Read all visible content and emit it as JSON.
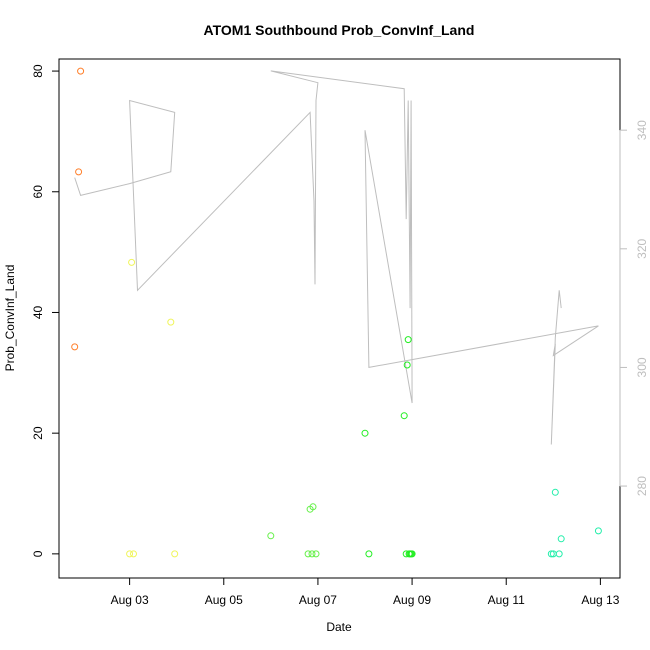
{
  "chart_data": {
    "type": "scatter",
    "title": "ATOM1 Southbound Prob_ConvInf_Land",
    "xlabel": "Date",
    "ylabel": "Prob_ConvInf_Land",
    "x_axis": {
      "type": "date",
      "range": [
        "2015-08-01T12:00",
        "2015-08-13T10:00"
      ],
      "ticks": [
        {
          "value": "2015-08-03",
          "label": "Aug 03"
        },
        {
          "value": "2015-08-05",
          "label": "Aug 05"
        },
        {
          "value": "2015-08-07",
          "label": "Aug 07"
        },
        {
          "value": "2015-08-09",
          "label": "Aug 09"
        },
        {
          "value": "2015-08-11",
          "label": "Aug 11"
        },
        {
          "value": "2015-08-13",
          "label": "Aug 13"
        }
      ]
    },
    "y_axis_left": {
      "range": [
        -4,
        82
      ],
      "ticks": [
        0,
        20,
        40,
        60,
        80
      ]
    },
    "y_axis_right": {
      "range": [
        264.5,
        352
      ],
      "ticks": [
        280,
        300,
        320,
        340
      ],
      "color": "#bebebe"
    },
    "series": [
      {
        "type": "scatter",
        "axis": "left",
        "points": [
          {
            "x": "2015-08-01T20:00",
            "y": 34.3,
            "color": "#ff7f2a"
          },
          {
            "x": "2015-08-01T22:00",
            "y": 63.3,
            "color": "#ff7f2a"
          },
          {
            "x": "2015-08-01T23:00",
            "y": 80.0,
            "color": "#ff7f2a"
          },
          {
            "x": "2015-08-03T00:00",
            "y": 0.0,
            "color": "#f0f55a"
          },
          {
            "x": "2015-08-03T01:00",
            "y": 48.3,
            "color": "#f0f55a"
          },
          {
            "x": "2015-08-03T02:00",
            "y": 0.0,
            "color": "#f0f55a"
          },
          {
            "x": "2015-08-03T21:00",
            "y": 38.4,
            "color": "#f0f55a"
          },
          {
            "x": "2015-08-03T23:00",
            "y": 0.0,
            "color": "#f0f55a"
          },
          {
            "x": "2015-08-06T00:00",
            "y": 3.0,
            "color": "#66f04a"
          },
          {
            "x": "2015-08-06T19:00",
            "y": 0.0,
            "color": "#66f04a"
          },
          {
            "x": "2015-08-06T20:00",
            "y": 7.4,
            "color": "#66f04a"
          },
          {
            "x": "2015-08-06T21:00",
            "y": 0.0,
            "color": "#66f04a"
          },
          {
            "x": "2015-08-06T21:30",
            "y": 7.8,
            "color": "#66f04a"
          },
          {
            "x": "2015-08-06T23:00",
            "y": 0.0,
            "color": "#66f04a"
          },
          {
            "x": "2015-08-08T00:00",
            "y": 20.0,
            "color": "#22ee22"
          },
          {
            "x": "2015-08-08T02:00",
            "y": 0.0,
            "color": "#22ee22"
          },
          {
            "x": "2015-08-08T20:00",
            "y": 22.9,
            "color": "#22ee22"
          },
          {
            "x": "2015-08-08T21:00",
            "y": 0.0,
            "color": "#22ee22"
          },
          {
            "x": "2015-08-08T21:30",
            "y": 31.3,
            "color": "#22ee22"
          },
          {
            "x": "2015-08-08T22:00",
            "y": 35.5,
            "color": "#22ee22"
          },
          {
            "x": "2015-08-08T22:30",
            "y": 0.0,
            "color": "#22ee22"
          },
          {
            "x": "2015-08-08T23:00",
            "y": 0.0,
            "color": "#22ee22"
          },
          {
            "x": "2015-08-08T23:30",
            "y": 0.0,
            "color": "#22ee22"
          },
          {
            "x": "2015-08-09T00:00",
            "y": 0.0,
            "color": "#22ee22"
          },
          {
            "x": "2015-08-11T23:00",
            "y": 0.0,
            "color": "#22eeaa"
          },
          {
            "x": "2015-08-12T00:00",
            "y": 0.0,
            "color": "#22eeaa"
          },
          {
            "x": "2015-08-12T01:00",
            "y": 10.2,
            "color": "#22eeaa"
          },
          {
            "x": "2015-08-12T03:00",
            "y": 0.0,
            "color": "#22eeaa"
          },
          {
            "x": "2015-08-12T04:00",
            "y": 2.5,
            "color": "#22eeaa"
          },
          {
            "x": "2015-08-12T23:00",
            "y": 3.8,
            "color": "#22eeaa"
          }
        ]
      },
      {
        "type": "line",
        "axis": "right",
        "color": "#bebebe",
        "points": [
          {
            "x": "2015-08-01T20:00",
            "y": 332
          },
          {
            "x": "2015-08-01T23:00",
            "y": 329
          },
          {
            "x": "2015-08-03T00:00",
            "y": 331
          },
          {
            "x": "2015-08-03T21:00",
            "y": 333
          },
          {
            "x": "2015-08-03T23:00",
            "y": 343
          },
          {
            "x": "2015-08-03T00:00",
            "y": 345
          },
          {
            "x": "2015-08-03T04:00",
            "y": 313
          },
          {
            "x": "2015-08-06T20:00",
            "y": 343
          },
          {
            "x": "2015-08-06T22:00",
            "y": 328
          },
          {
            "x": "2015-08-06T22:30",
            "y": 314
          },
          {
            "x": "2015-08-06T23:00",
            "y": 345
          },
          {
            "x": "2015-08-07T00:00",
            "y": 348
          },
          {
            "x": "2015-08-06T00:00",
            "y": 350
          },
          {
            "x": "2015-08-08T20:00",
            "y": 347
          },
          {
            "x": "2015-08-08T21:00",
            "y": 325
          },
          {
            "x": "2015-08-08T22:00",
            "y": 345
          },
          {
            "x": "2015-08-08T23:00",
            "y": 310
          },
          {
            "x": "2015-08-08T23:30",
            "y": 345
          },
          {
            "x": "2015-08-09T00:00",
            "y": 294
          },
          {
            "x": "2015-08-08T00:00",
            "y": 340
          },
          {
            "x": "2015-08-08T02:00",
            "y": 300
          },
          {
            "x": "2015-08-12T23:00",
            "y": 307
          },
          {
            "x": "2015-08-12T00:00",
            "y": 302
          },
          {
            "x": "2015-08-12T01:00",
            "y": 304
          },
          {
            "x": "2015-08-11T23:00",
            "y": 287
          },
          {
            "x": "2015-08-12T01:00",
            "y": 305
          },
          {
            "x": "2015-08-12T03:00",
            "y": 313
          },
          {
            "x": "2015-08-12T04:00",
            "y": 310
          }
        ]
      }
    ],
    "grid": false,
    "legend": "none"
  }
}
